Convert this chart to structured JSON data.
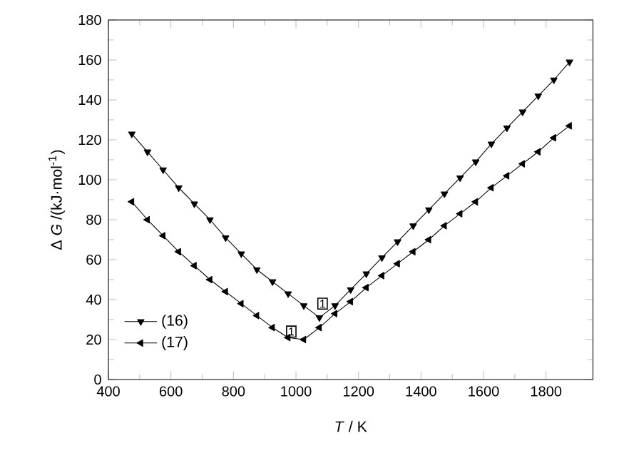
{
  "chart_data": {
    "type": "line",
    "xlabel": "*T* / K",
    "ylabel": "Δ *G* /(kJ·mol$^{-1}$)",
    "x": [
      475,
      525,
      575,
      625,
      675,
      725,
      775,
      825,
      875,
      925,
      975,
      1025,
      1075,
      1125,
      1175,
      1225,
      1275,
      1325,
      1375,
      1425,
      1475,
      1525,
      1575,
      1625,
      1675,
      1725,
      1775,
      1825,
      1875
    ],
    "series": [
      {
        "name": "(16)",
        "color": "#000000",
        "marker": "triangle-down",
        "values": [
          123,
          114,
          105,
          96,
          88,
          80,
          71,
          63,
          55,
          49,
          43,
          37,
          31,
          37,
          45,
          53,
          61,
          69,
          77,
          85,
          93,
          101,
          109,
          118,
          126,
          134,
          142,
          150,
          159
        ]
      },
      {
        "name": "(17)",
        "color": "#000000",
        "marker": "triangle-left",
        "values": [
          89,
          80,
          72,
          64,
          57,
          50,
          44,
          38,
          32,
          26,
          21,
          20,
          26,
          33,
          39,
          46,
          52,
          58,
          64,
          70,
          77,
          83,
          89,
          96,
          102,
          108,
          114,
          121,
          127
        ]
      }
    ],
    "annotations": [
      {
        "text": "1",
        "x": 1085,
        "y": 38
      },
      {
        "text": "1",
        "x": 985,
        "y": 24
      }
    ],
    "xlim": [
      400,
      1950
    ],
    "ylim": [
      0,
      180
    ],
    "xticks": [
      400,
      600,
      800,
      1000,
      1200,
      1400,
      1600,
      1800
    ],
    "yticks": [
      0,
      20,
      40,
      60,
      80,
      100,
      120,
      140,
      160,
      180
    ],
    "legend": "bottom left",
    "line_style": "solid",
    "grid": false
  }
}
